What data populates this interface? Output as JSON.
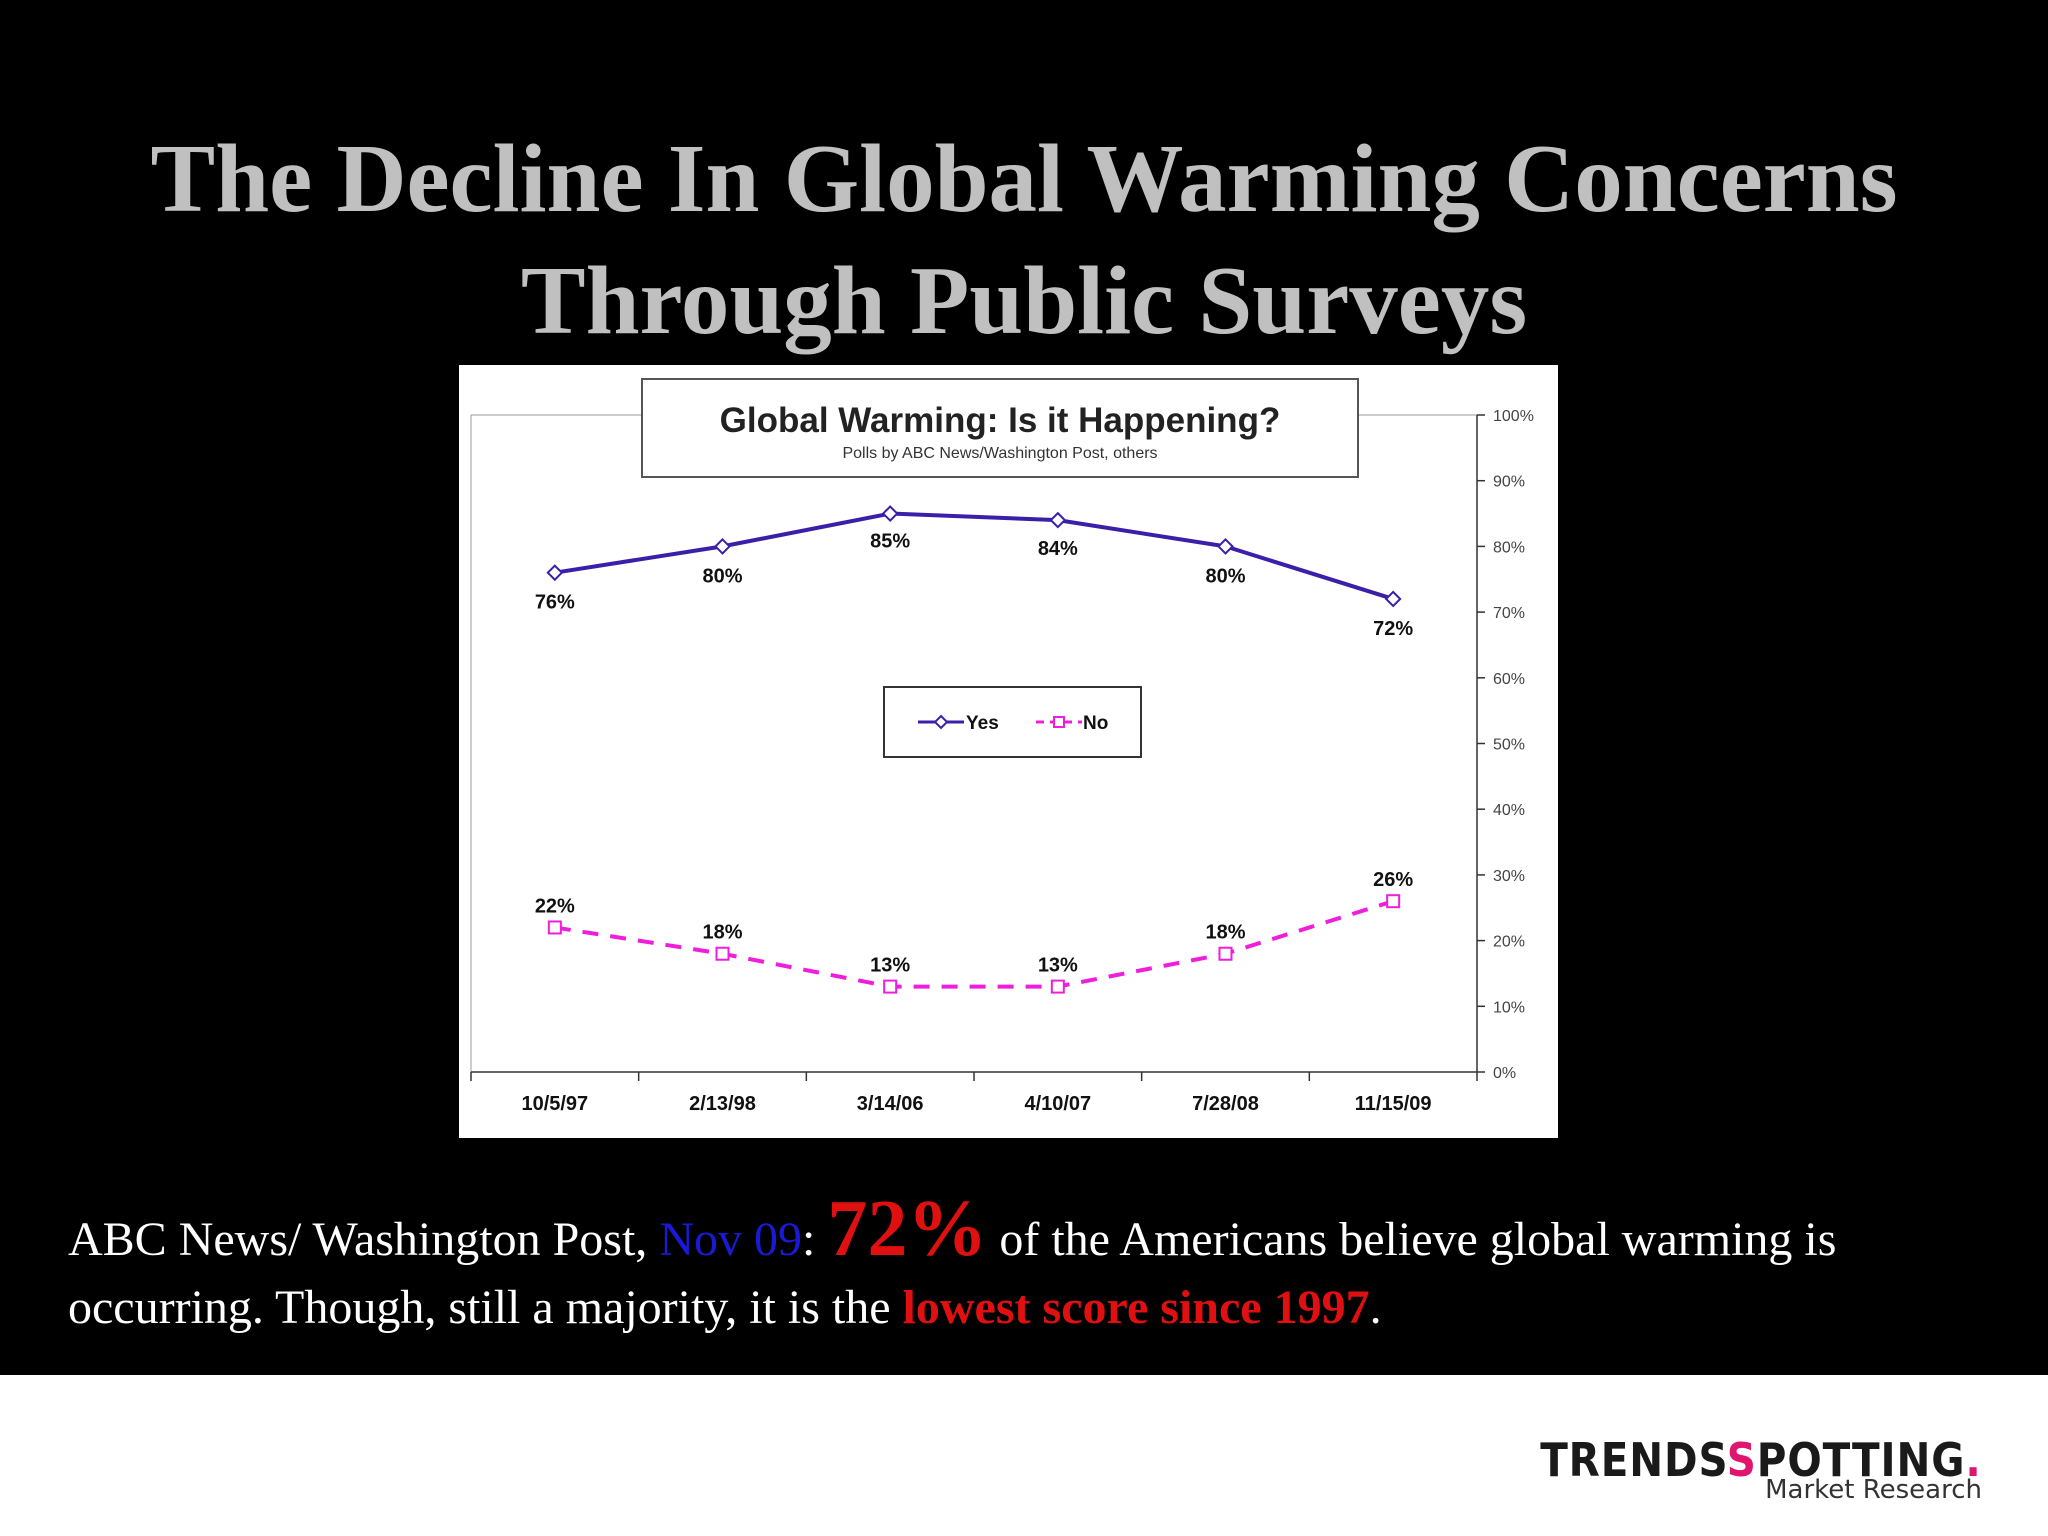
{
  "slide": {
    "title_line1": "The Decline In Global Warming Concerns",
    "title_line2": "Through Public Surveys"
  },
  "caption": {
    "part1": "ABC News/ Washington Post, ",
    "date": "Nov 09",
    "colon": ": ",
    "stat": "72%",
    "part2": " of the Americans believe global warming is occurring. Though, still  a majority,  it is the ",
    "highlight": "lowest score since 1997",
    "end": "."
  },
  "logo": {
    "name_part1": "TRENDS",
    "name_mark": "S",
    "name_part2": "POTTING",
    "name_dot": ".",
    "tagline": "Market Research"
  },
  "colors": {
    "yes": "#3b1fa8",
    "no": "#f01edc",
    "caption_date": "#1a1ad6",
    "caption_highlight": "#e01010",
    "title": "#c0c0c0"
  },
  "chart_data": {
    "type": "line",
    "title": "Global Warming: Is it Happening?",
    "subtitle": "Polls by ABC News/Washington Post, others",
    "categories": [
      "10/5/97",
      "2/13/98",
      "3/14/06",
      "4/10/07",
      "7/28/08",
      "11/15/09"
    ],
    "series": [
      {
        "name": "Yes",
        "values": [
          76,
          80,
          85,
          84,
          80,
          72
        ],
        "labels": [
          "76%",
          "80%",
          "85%",
          "84%",
          "80%",
          "72%"
        ],
        "color": "#3b1fa8",
        "marker": "diamond",
        "dashed": false
      },
      {
        "name": "No",
        "values": [
          22,
          18,
          13,
          13,
          18,
          26
        ],
        "labels": [
          "22%",
          "18%",
          "13%",
          "13%",
          "18%",
          "26%"
        ],
        "color": "#f01edc",
        "marker": "square",
        "dashed": true
      }
    ],
    "y_ticks": [
      "0%",
      "10%",
      "20%",
      "30%",
      "40%",
      "50%",
      "60%",
      "70%",
      "80%",
      "90%",
      "100%"
    ],
    "ylim": [
      0,
      100
    ],
    "y_axis_side": "right",
    "legend_position": "center",
    "grid": false
  }
}
